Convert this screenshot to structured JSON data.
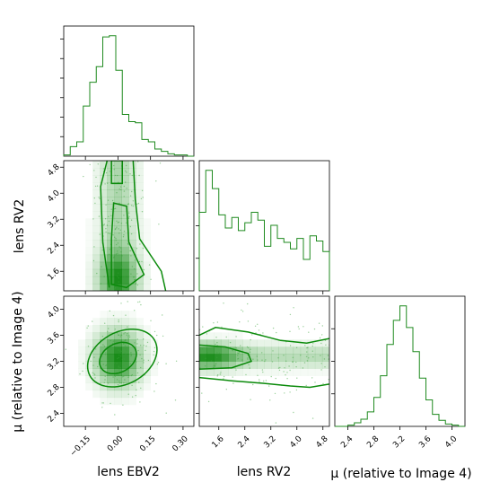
{
  "chart_data": {
    "type": "corner",
    "color": "#008000",
    "parameters": [
      {
        "key": "ebv",
        "label": "lens EBV2",
        "range": [
          -0.25,
          0.35
        ],
        "ticks": [
          -0.15,
          0.0,
          0.15,
          0.3
        ],
        "tick_labels": [
          "−0.15",
          "0.00",
          "0.15",
          "0.30"
        ]
      },
      {
        "key": "rv",
        "label": "lens RV2",
        "range": [
          1.0,
          5.0
        ],
        "ticks": [
          1.6,
          2.4,
          3.2,
          4.0,
          4.8
        ],
        "tick_labels": [
          "1.6",
          "2.4",
          "3.2",
          "4.0",
          "4.8"
        ]
      },
      {
        "key": "mu",
        "label": "μ (relative to Image 4)",
        "range": [
          2.2,
          4.2
        ],
        "ticks": [
          2.4,
          2.8,
          3.2,
          3.6,
          4.0
        ],
        "tick_labels": [
          "2.4",
          "2.8",
          "3.2",
          "3.6",
          "4.0"
        ]
      }
    ],
    "histograms": {
      "ebv": {
        "bins": [
          -0.25,
          -0.22,
          -0.19,
          -0.16,
          -0.13,
          -0.1,
          -0.07,
          -0.04,
          -0.01,
          0.02,
          0.05,
          0.08,
          0.11,
          0.14,
          0.17,
          0.2,
          0.23,
          0.26,
          0.29,
          0.32,
          0.35
        ],
        "counts": [
          1,
          8,
          12,
          42,
          62,
          75,
          100,
          101,
          72,
          35,
          29,
          28,
          14,
          12,
          6,
          4,
          2,
          1,
          1,
          0
        ]
      },
      "rv": {
        "bins": [
          1.0,
          1.2,
          1.4,
          1.6,
          1.8,
          2.0,
          2.2,
          2.4,
          2.6,
          2.8,
          3.0,
          3.2,
          3.4,
          3.6,
          3.8,
          4.0,
          4.2,
          4.4,
          4.6,
          4.8,
          5.0
        ],
        "counts": [
          60,
          92,
          78,
          58,
          48,
          56,
          46,
          52,
          60,
          54,
          34,
          50,
          40,
          37,
          32,
          40,
          24,
          42,
          38,
          30
        ]
      },
      "mu": {
        "bins": [
          2.2,
          2.3,
          2.4,
          2.5,
          2.6,
          2.7,
          2.8,
          2.9,
          3.0,
          3.1,
          3.2,
          3.3,
          3.4,
          3.5,
          3.6,
          3.7,
          3.8,
          3.9,
          4.0,
          4.1,
          4.2
        ],
        "counts": [
          0,
          0,
          1,
          3,
          6,
          12,
          24,
          42,
          68,
          88,
          100,
          82,
          62,
          40,
          22,
          10,
          5,
          2,
          1,
          0
        ]
      }
    },
    "density_2d": [
      {
        "x": "ebv",
        "y": "rv",
        "peak": [
          0.0,
          1.4
        ],
        "x_sigma": 0.07,
        "y_extent": [
          1.0,
          5.0
        ]
      },
      {
        "x": "ebv",
        "y": "mu",
        "peak": [
          0.0,
          3.25
        ],
        "x_sigma": 0.08,
        "y_sigma": 0.3
      },
      {
        "x": "rv",
        "y": "mu",
        "peak": [
          1.4,
          3.25
        ],
        "x_extent": [
          1.0,
          5.0
        ],
        "y_sigma": 0.3
      }
    ]
  }
}
